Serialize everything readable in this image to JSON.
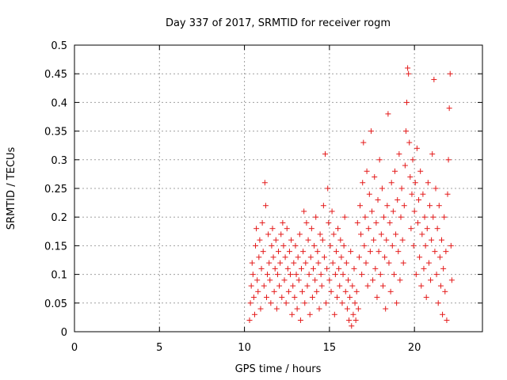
{
  "chart_data": {
    "type": "scatter",
    "title": "Day 337 of 2017, SRMTID for receiver rogm",
    "xlabel": "GPS time / hours",
    "ylabel": "SRMTID / TECUs",
    "xlim": [
      0,
      24.0
    ],
    "ylim": [
      0,
      0.5
    ],
    "xticks": [
      "0",
      "5",
      "10",
      "15",
      "20"
    ],
    "xtick_values": [
      0,
      5,
      10,
      15,
      20
    ],
    "yticks": [
      "0",
      "0.05",
      "0.1",
      "0.15",
      "0.2",
      "0.25",
      "0.3",
      "0.35",
      "0.4",
      "0.45",
      "0.5"
    ],
    "ytick_values": [
      0,
      0.05,
      0.1,
      0.15,
      0.2,
      0.25,
      0.3,
      0.35,
      0.4,
      0.45,
      0.5
    ],
    "grid": true,
    "series": [
      {
        "name": "SRMTID",
        "marker": "+",
        "color": "#e41a1a",
        "points": [
          [
            10.3,
            0.02
          ],
          [
            10.35,
            0.05
          ],
          [
            10.4,
            0.08
          ],
          [
            10.45,
            0.12
          ],
          [
            10.5,
            0.1
          ],
          [
            10.55,
            0.06
          ],
          [
            10.6,
            0.03
          ],
          [
            10.65,
            0.15
          ],
          [
            10.7,
            0.18
          ],
          [
            10.75,
            0.09
          ],
          [
            10.8,
            0.07
          ],
          [
            10.85,
            0.13
          ],
          [
            10.9,
            0.16
          ],
          [
            10.95,
            0.04
          ],
          [
            11.0,
            0.11
          ],
          [
            11.05,
            0.19
          ],
          [
            11.1,
            0.14
          ],
          [
            11.15,
            0.08
          ],
          [
            11.2,
            0.26
          ],
          [
            11.25,
            0.22
          ],
          [
            11.3,
            0.06
          ],
          [
            11.35,
            0.1
          ],
          [
            11.4,
            0.17
          ],
          [
            11.45,
            0.12
          ],
          [
            11.5,
            0.09
          ],
          [
            11.55,
            0.05
          ],
          [
            11.6,
            0.15
          ],
          [
            11.65,
            0.18
          ],
          [
            11.7,
            0.13
          ],
          [
            11.75,
            0.07
          ],
          [
            11.8,
            0.11
          ],
          [
            11.85,
            0.16
          ],
          [
            11.9,
            0.04
          ],
          [
            11.95,
            0.1
          ],
          [
            12.0,
            0.14
          ],
          [
            12.05,
            0.08
          ],
          [
            12.1,
            0.12
          ],
          [
            12.15,
            0.17
          ],
          [
            12.2,
            0.06
          ],
          [
            12.25,
            0.19
          ],
          [
            12.3,
            0.15
          ],
          [
            12.35,
            0.09
          ],
          [
            12.4,
            0.13
          ],
          [
            12.45,
            0.05
          ],
          [
            12.5,
            0.18
          ],
          [
            12.55,
            0.11
          ],
          [
            12.6,
            0.07
          ],
          [
            12.65,
            0.14
          ],
          [
            12.7,
            0.1
          ],
          [
            12.75,
            0.16
          ],
          [
            12.8,
            0.03
          ],
          [
            12.85,
            0.08
          ],
          [
            12.9,
            0.12
          ],
          [
            12.95,
            0.06
          ],
          [
            13.0,
            0.15
          ],
          [
            13.05,
            0.1
          ],
          [
            13.1,
            0.04
          ],
          [
            13.15,
            0.13
          ],
          [
            13.2,
            0.09
          ],
          [
            13.25,
            0.17
          ],
          [
            13.3,
            0.02
          ],
          [
            13.35,
            0.11
          ],
          [
            13.4,
            0.07
          ],
          [
            13.45,
            0.14
          ],
          [
            13.5,
            0.21
          ],
          [
            13.55,
            0.05
          ],
          [
            13.6,
            0.12
          ],
          [
            13.65,
            0.19
          ],
          [
            13.7,
            0.08
          ],
          [
            13.75,
            0.16
          ],
          [
            13.8,
            0.1
          ],
          [
            13.85,
            0.03
          ],
          [
            13.9,
            0.13
          ],
          [
            13.95,
            0.18
          ],
          [
            14.0,
            0.06
          ],
          [
            14.05,
            0.11
          ],
          [
            14.1,
            0.15
          ],
          [
            14.15,
            0.09
          ],
          [
            14.2,
            0.2
          ],
          [
            14.25,
            0.07
          ],
          [
            14.3,
            0.14
          ],
          [
            14.35,
            0.12
          ],
          [
            14.4,
            0.04
          ],
          [
            14.45,
            0.17
          ],
          [
            14.5,
            0.1
          ],
          [
            14.55,
            0.08
          ],
          [
            14.6,
            0.16
          ],
          [
            14.65,
            0.22
          ],
          [
            14.7,
            0.13
          ],
          [
            14.75,
            0.31
          ],
          [
            14.8,
            0.05
          ],
          [
            14.85,
            0.11
          ],
          [
            14.9,
            0.25
          ],
          [
            14.95,
            0.19
          ],
          [
            15.0,
            0.09
          ],
          [
            15.05,
            0.15
          ],
          [
            15.1,
            0.07
          ],
          [
            15.15,
            0.21
          ],
          [
            15.2,
            0.12
          ],
          [
            15.25,
            0.17
          ],
          [
            15.3,
            0.03
          ],
          [
            15.35,
            0.1
          ],
          [
            15.4,
            0.14
          ],
          [
            15.45,
            0.06
          ],
          [
            15.5,
            0.18
          ],
          [
            15.55,
            0.11
          ],
          [
            15.6,
            0.08
          ],
          [
            15.65,
            0.16
          ],
          [
            15.7,
            0.13
          ],
          [
            15.75,
            0.05
          ],
          [
            15.8,
            0.1
          ],
          [
            15.85,
            0.15
          ],
          [
            15.9,
            0.2
          ],
          [
            15.95,
            0.07
          ],
          [
            16.0,
            0.12
          ],
          [
            16.05,
            0.04
          ],
          [
            16.1,
            0.09
          ],
          [
            16.15,
            0.02
          ],
          [
            16.2,
            0.06
          ],
          [
            16.25,
            0.14
          ],
          [
            16.3,
            0.01
          ],
          [
            16.35,
            0.08
          ],
          [
            16.4,
            0.03
          ],
          [
            16.45,
            0.11
          ],
          [
            16.5,
            0.05
          ],
          [
            16.55,
            0.02
          ],
          [
            16.6,
            0.07
          ],
          [
            16.65,
            0.19
          ],
          [
            16.7,
            0.04
          ],
          [
            16.75,
            0.13
          ],
          [
            16.8,
            0.22
          ],
          [
            16.85,
            0.17
          ],
          [
            16.9,
            0.1
          ],
          [
            16.95,
            0.26
          ],
          [
            17.0,
            0.33
          ],
          [
            17.05,
            0.15
          ],
          [
            17.1,
            0.2
          ],
          [
            17.15,
            0.12
          ],
          [
            17.2,
            0.28
          ],
          [
            17.25,
            0.08
          ],
          [
            17.3,
            0.18
          ],
          [
            17.35,
            0.24
          ],
          [
            17.4,
            0.14
          ],
          [
            17.45,
            0.35
          ],
          [
            17.5,
            0.21
          ],
          [
            17.55,
            0.09
          ],
          [
            17.6,
            0.16
          ],
          [
            17.65,
            0.27
          ],
          [
            17.7,
            0.11
          ],
          [
            17.75,
            0.19
          ],
          [
            17.8,
            0.06
          ],
          [
            17.85,
            0.23
          ],
          [
            17.9,
            0.14
          ],
          [
            17.95,
            0.3
          ],
          [
            18.0,
            0.1
          ],
          [
            18.05,
            0.17
          ],
          [
            18.1,
            0.25
          ],
          [
            18.15,
            0.08
          ],
          [
            18.2,
            0.2
          ],
          [
            18.25,
            0.13
          ],
          [
            18.3,
            0.04
          ],
          [
            18.35,
            0.16
          ],
          [
            18.4,
            0.22
          ],
          [
            18.45,
            0.38
          ],
          [
            18.5,
            0.12
          ],
          [
            18.55,
            0.19
          ],
          [
            18.6,
            0.07
          ],
          [
            18.65,
            0.26
          ],
          [
            18.7,
            0.15
          ],
          [
            18.75,
            0.21
          ],
          [
            18.8,
            0.1
          ],
          [
            18.85,
            0.28
          ],
          [
            18.9,
            0.17
          ],
          [
            18.95,
            0.05
          ],
          [
            19.0,
            0.23
          ],
          [
            19.05,
            0.14
          ],
          [
            19.1,
            0.31
          ],
          [
            19.15,
            0.09
          ],
          [
            19.2,
            0.2
          ],
          [
            19.25,
            0.25
          ],
          [
            19.3,
            0.16
          ],
          [
            19.35,
            0.12
          ],
          [
            19.4,
            0.22
          ],
          [
            19.45,
            0.29
          ],
          [
            19.5,
            0.35
          ],
          [
            19.55,
            0.4
          ],
          [
            19.6,
            0.46
          ],
          [
            19.65,
            0.45
          ],
          [
            19.7,
            0.33
          ],
          [
            19.75,
            0.27
          ],
          [
            19.8,
            0.18
          ],
          [
            19.85,
            0.24
          ],
          [
            19.9,
            0.3
          ],
          [
            19.95,
            0.15
          ],
          [
            20.0,
            0.21
          ],
          [
            20.05,
            0.26
          ],
          [
            20.1,
            0.1
          ],
          [
            20.15,
            0.32
          ],
          [
            20.2,
            0.19
          ],
          [
            20.25,
            0.23
          ],
          [
            20.3,
            0.13
          ],
          [
            20.35,
            0.28
          ],
          [
            20.4,
            0.08
          ],
          [
            20.45,
            0.17
          ],
          [
            20.5,
            0.24
          ],
          [
            20.55,
            0.11
          ],
          [
            20.6,
            0.2
          ],
          [
            20.65,
            0.15
          ],
          [
            20.7,
            0.06
          ],
          [
            20.75,
            0.18
          ],
          [
            20.8,
            0.26
          ],
          [
            20.85,
            0.12
          ],
          [
            20.9,
            0.22
          ],
          [
            20.95,
            0.09
          ],
          [
            21.0,
            0.16
          ],
          [
            21.05,
            0.31
          ],
          [
            21.1,
            0.2
          ],
          [
            21.15,
            0.44
          ],
          [
            21.2,
            0.14
          ],
          [
            21.25,
            0.25
          ],
          [
            21.3,
            0.1
          ],
          [
            21.35,
            0.18
          ],
          [
            21.4,
            0.05
          ],
          [
            21.45,
            0.22
          ],
          [
            21.5,
            0.13
          ],
          [
            21.55,
            0.08
          ],
          [
            21.6,
            0.16
          ],
          [
            21.65,
            0.03
          ],
          [
            21.7,
            0.11
          ],
          [
            21.75,
            0.2
          ],
          [
            21.8,
            0.07
          ],
          [
            21.85,
            0.14
          ],
          [
            21.9,
            0.02
          ],
          [
            21.95,
            0.24
          ],
          [
            22.0,
            0.3
          ],
          [
            22.05,
            0.39
          ],
          [
            22.1,
            0.45
          ],
          [
            22.15,
            0.15
          ],
          [
            22.2,
            0.09
          ]
        ]
      }
    ]
  }
}
